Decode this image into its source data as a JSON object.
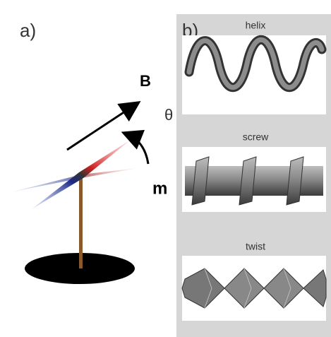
{
  "panel_a": {
    "label": "a)",
    "field_label": "B",
    "angle_label": "θ",
    "moment_label": "m"
  },
  "panel_b": {
    "label": "b)",
    "shapes": [
      {
        "label": "helix"
      },
      {
        "label": "screw"
      },
      {
        "label": "twist"
      }
    ]
  }
}
